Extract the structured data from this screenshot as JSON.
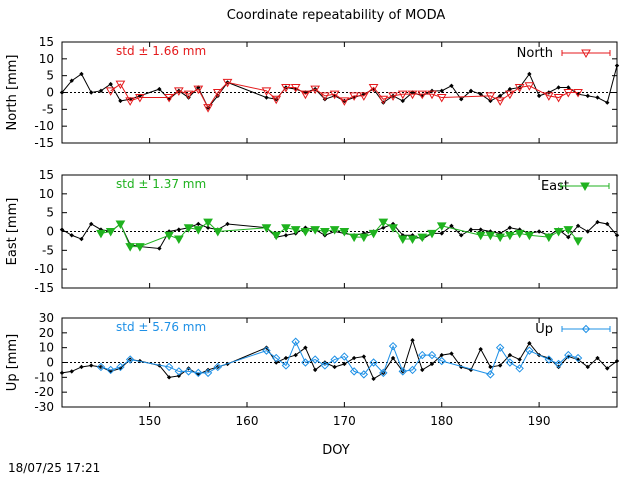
{
  "footer": {
    "timestamp": "18/07/25 17:21"
  },
  "chart_data": {
    "type": "line",
    "title": "Coordinate repeatability of MODA",
    "xlabel": "DOY",
    "xlim": [
      141,
      198
    ],
    "x_ticks": [
      150,
      160,
      170,
      180,
      190
    ],
    "panels": [
      {
        "id": "north",
        "ylabel": "North [mm]",
        "ylim": [
          -15,
          15
        ],
        "y_ticks": [
          -15,
          -10,
          -5,
          0,
          5,
          10,
          15
        ],
        "std_label": "std ± 1.66 mm",
        "legend": "North",
        "color": "#e41a1c",
        "marker": "triangle-down-open",
        "series_all": {
          "x": [
            141,
            142,
            143,
            144,
            145,
            146,
            147,
            148,
            149,
            151,
            152,
            153,
            154,
            155,
            156,
            157,
            158,
            162,
            163,
            164,
            165,
            166,
            167,
            168,
            169,
            170,
            171,
            172,
            173,
            174,
            175,
            176,
            177,
            178,
            179,
            180,
            181,
            182,
            183,
            184,
            185,
            186,
            187,
            188,
            189,
            190,
            191,
            192,
            193,
            194,
            195,
            196,
            197,
            198
          ],
          "y": [
            0,
            3.5,
            5.5,
            0,
            0.5,
            2.5,
            -2.5,
            -2,
            -1,
            1,
            -2,
            0.5,
            -1.5,
            1.5,
            -4.5,
            -1,
            3,
            -1.5,
            -2,
            1.5,
            1,
            0,
            1,
            -2,
            -1,
            -2.5,
            -1.5,
            -0.5,
            1,
            -3,
            -1,
            -2.5,
            0,
            -1,
            0.5,
            0.5,
            2,
            -2,
            0.5,
            -0.5,
            -2.5,
            -1,
            1,
            1.5,
            5.5,
            -1,
            0,
            1.5,
            1.5,
            -0.5,
            -1,
            -1.5,
            -3,
            8
          ]
        },
        "series_solution": {
          "x": [
            146,
            147,
            148,
            149,
            152,
            153,
            154,
            155,
            156,
            157,
            158,
            162,
            163,
            164,
            165,
            166,
            167,
            168,
            169,
            170,
            171,
            172,
            173,
            174,
            175,
            176,
            177,
            178,
            179,
            180,
            185,
            186,
            187,
            188,
            189,
            191,
            192,
            193,
            194
          ],
          "y": [
            0.5,
            2.5,
            -2.5,
            -1.5,
            -1.5,
            0.5,
            -0.5,
            1,
            -4.5,
            0,
            3,
            0.5,
            -2,
            1.5,
            1.5,
            -0.5,
            1,
            -1,
            -0.5,
            -2.5,
            -1,
            -1,
            1.5,
            -2,
            -1,
            -0.5,
            -0.5,
            -0.5,
            -0.5,
            -1.5,
            -1,
            -2.5,
            -0.5,
            1.5,
            2,
            -1,
            -1.5,
            0,
            0
          ]
        }
      },
      {
        "id": "east",
        "ylabel": "East [mm]",
        "ylim": [
          -15,
          15
        ],
        "y_ticks": [
          -15,
          -10,
          -5,
          0,
          5,
          10,
          15
        ],
        "std_label": "std ± 1.37 mm",
        "legend": "East",
        "color": "#1fb21f",
        "marker": "triangle-down-filled",
        "series_all": {
          "x": [
            141,
            142,
            143,
            144,
            145,
            146,
            147,
            148,
            149,
            151,
            152,
            153,
            154,
            155,
            156,
            157,
            158,
            162,
            163,
            164,
            165,
            166,
            167,
            168,
            169,
            170,
            171,
            172,
            173,
            174,
            175,
            176,
            177,
            178,
            179,
            180,
            181,
            182,
            183,
            184,
            185,
            186,
            187,
            188,
            189,
            190,
            191,
            192,
            193,
            194,
            195,
            196,
            197,
            198
          ],
          "y": [
            0.5,
            -1,
            -2,
            2,
            0.5,
            0,
            2,
            -3.5,
            -4,
            -4.5,
            0,
            0.5,
            1,
            2,
            1,
            0.5,
            2,
            1,
            -1.5,
            -1,
            -0.5,
            1,
            0.5,
            -1,
            0,
            -0.5,
            -1,
            -0.5,
            0,
            1,
            2,
            -1,
            -1,
            -2,
            -0.5,
            -0.5,
            1.5,
            -1,
            0.5,
            0.5,
            0,
            -0.5,
            1,
            0.5,
            -0.5,
            0,
            -1,
            0.5,
            -1.5,
            1.5,
            0,
            2.5,
            2,
            -1
          ]
        },
        "series_solution": {
          "x": [
            145,
            146,
            147,
            148,
            149,
            152,
            153,
            154,
            155,
            156,
            157,
            162,
            163,
            164,
            165,
            166,
            167,
            168,
            169,
            170,
            171,
            172,
            173,
            174,
            175,
            176,
            177,
            178,
            179,
            180,
            184,
            185,
            186,
            187,
            188,
            189,
            191,
            192,
            193,
            194
          ],
          "y": [
            -0.5,
            0,
            2,
            -4,
            -4,
            -1,
            -2,
            1,
            0.5,
            2.5,
            0,
            1,
            -1,
            1,
            0.5,
            0,
            0.5,
            0,
            0.5,
            0,
            -1.5,
            -1.5,
            -0.5,
            2.5,
            1,
            -2,
            -2,
            -1.5,
            -0.5,
            1.5,
            -1,
            -1,
            -1.5,
            -1,
            -0.5,
            -1,
            -1.5,
            0,
            0.5,
            -2.5
          ]
        }
      },
      {
        "id": "up",
        "ylabel": "Up [mm]",
        "ylim": [
          -30,
          30
        ],
        "y_ticks": [
          -30,
          -20,
          -10,
          0,
          10,
          20,
          30
        ],
        "std_label": "std ± 5.76 mm",
        "legend": "Up",
        "color": "#1e90e6",
        "marker": "diamond-open",
        "series_all": {
          "x": [
            141,
            142,
            143,
            144,
            145,
            146,
            147,
            148,
            149,
            151,
            152,
            153,
            154,
            155,
            156,
            157,
            158,
            162,
            163,
            164,
            165,
            166,
            167,
            168,
            169,
            170,
            171,
            172,
            173,
            174,
            175,
            176,
            177,
            178,
            179,
            180,
            181,
            182,
            183,
            184,
            185,
            186,
            187,
            188,
            189,
            190,
            191,
            192,
            193,
            194,
            195,
            196,
            197,
            198
          ],
          "y": [
            -7,
            -6,
            -3,
            -2,
            -3,
            -6,
            -4,
            2,
            1,
            -2,
            -10,
            -9,
            -4,
            -8,
            -5,
            -3,
            -1,
            10,
            0,
            3,
            5,
            10,
            -5,
            0,
            -3,
            -1,
            3,
            4,
            -11,
            -7,
            3,
            -6,
            15,
            -5,
            -1,
            5,
            6,
            -3,
            -5,
            9,
            -3,
            -2,
            5,
            2,
            13,
            5,
            3,
            -3,
            4,
            2,
            -3,
            3,
            -4,
            1
          ]
        },
        "series_solution": {
          "x": [
            145,
            146,
            147,
            148,
            152,
            153,
            154,
            155,
            156,
            157,
            162,
            163,
            164,
            165,
            166,
            167,
            168,
            169,
            170,
            171,
            172,
            173,
            174,
            175,
            176,
            177,
            178,
            179,
            180,
            185,
            186,
            187,
            188,
            189,
            191,
            192,
            193,
            194
          ],
          "y": [
            -3,
            -5,
            -3,
            2,
            -3,
            -6,
            -6,
            -7,
            -7,
            -3,
            8,
            3,
            -2,
            14,
            0,
            2,
            -2,
            2,
            4,
            -6,
            -8,
            0,
            -7,
            11,
            -6,
            -5,
            5,
            5,
            1,
            -8,
            10,
            0,
            -4,
            8,
            2,
            -1,
            5,
            3
          ]
        }
      }
    ]
  }
}
